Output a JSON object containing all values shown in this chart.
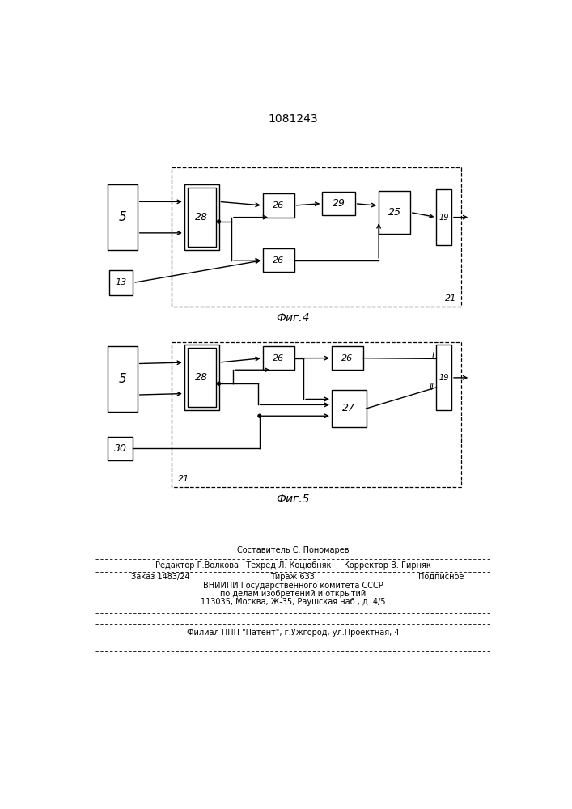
{
  "title": "1081243",
  "bg_color": "#ffffff",
  "fig4_caption": "Фиг.4",
  "fig5_caption": "Фиг.5",
  "footer_line1": "Составитель С. Пономарев",
  "footer_line2": "Редактор Г.Волкова   Техред Л. Коцюбняк     Корректор В. Гирняк",
  "footer_line3a": "Заказ 1483/24",
  "footer_line3b": "Тираж 633",
  "footer_line3c": "Подписное",
  "footer_line4": "ВНИИПИ Государственного комитета СССР",
  "footer_line5": "по делам изобретений и открытий",
  "footer_line6": "113035, Москва, Ж-35, Раушская наб., д. 4/5",
  "footer_line7": "Филиал ППП \"Патент\", г.Ужгород, ул.Проектная, 4"
}
